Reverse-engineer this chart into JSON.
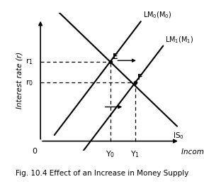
{
  "title": "Fig. 10.4 Effect of an Increase in Money Supply",
  "xlabel": "Income (Y)",
  "ylabel": "Interest rate (r)",
  "bg_color": "#ffffff",
  "line_color": "#000000",
  "xlim": [
    0,
    10
  ],
  "ylim": [
    0,
    10
  ],
  "E_point": [
    5.0,
    6.5
  ],
  "F_point": [
    6.8,
    4.8
  ],
  "LM0_label": "LM$_0$(M$_0$)",
  "LM1_label": "LM$_1$(M$_1$)",
  "IS_label": "IS$_0$",
  "r1_label": "r$_1$",
  "r0_label": "r$_0$",
  "Y0_label": "Y$_0$",
  "Y1_label": "Y$_1$",
  "origin_label": "0",
  "E_label": "E",
  "F_label": "F",
  "LM0_slope": 1.5,
  "IS_slope": -1.1
}
